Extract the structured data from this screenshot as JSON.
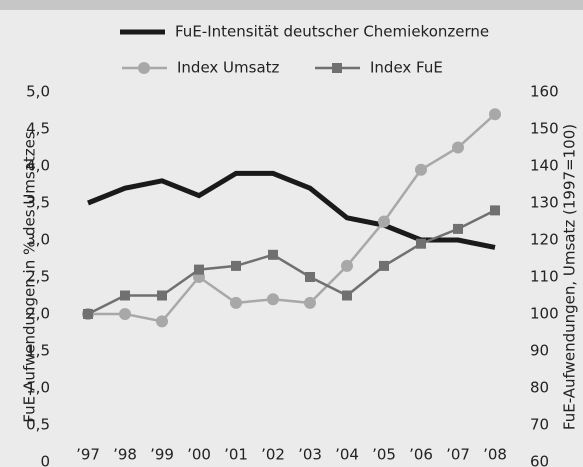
{
  "chart_data": {
    "type": "line",
    "categories": [
      "’97",
      "’98",
      "’99",
      "’00",
      "’01",
      "’02",
      "’03",
      "’04",
      "’05",
      "’06",
      "’07",
      "’08"
    ],
    "series": [
      {
        "name": "FuE-Intensität deutscher Chemiekonzerne",
        "color": "#1a1a1a",
        "axis": "y",
        "values": [
          3.5,
          3.7,
          3.8,
          3.6,
          3.9,
          3.9,
          3.7,
          3.3,
          3.2,
          3.0,
          3.0,
          2.9
        ]
      },
      {
        "name": "Index Umsatz",
        "color": "#a8a8a8",
        "axis": "y2",
        "marker": "circle",
        "values": [
          100,
          100,
          98,
          110,
          103,
          104,
          103,
          113,
          125,
          139,
          145,
          154
        ]
      },
      {
        "name": "Index FuE",
        "color": "#707070",
        "axis": "y2",
        "marker": "square",
        "values": [
          100,
          105,
          105,
          112,
          113,
          116,
          110,
          105,
          113,
          119,
          123,
          128
        ]
      }
    ],
    "ylabel": "FuE-Aufwendungen in % des Umsatzes",
    "y2label": "FuE-Aufwendungen, Umsatz (1997=100)",
    "ylim": [
      0,
      5
    ],
    "yticks": [
      0,
      {
        "value": 0.5,
        "label": "0,5"
      },
      {
        "value": 1,
        "label": "1,0"
      },
      {
        "value": 1.5,
        "label": "1,5"
      },
      {
        "value": 2,
        "label": "2,0"
      },
      {
        "value": 2.5,
        "label": "2,5"
      },
      {
        "value": 3,
        "label": "3,0"
      },
      {
        "value": 3.5,
        "label": "3,5"
      },
      {
        "value": 4,
        "label": "4,0"
      },
      {
        "value": 4.5,
        "label": "4,5"
      },
      {
        "value": 5,
        "label": "5,0"
      }
    ],
    "y2lim": [
      60,
      160
    ],
    "y2ticks": [
      60,
      70,
      80,
      90,
      100,
      110,
      120,
      130,
      140,
      150,
      160
    ],
    "grid": false
  }
}
